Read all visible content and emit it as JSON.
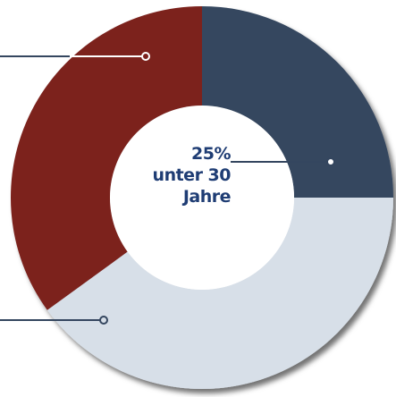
{
  "chart_data": {
    "type": "pie",
    "donut": true,
    "start_angle_deg": 0,
    "slices": [
      {
        "value": 25,
        "color": "#34465f"
      },
      {
        "value": 40,
        "color": "#d7dfe8"
      },
      {
        "value": 35,
        "color": "#7b211d"
      }
    ],
    "annotations": {
      "center_value": "25%",
      "center_line1": "unter 30",
      "center_line2": "Jahre",
      "clipped_top_left": "0"
    }
  },
  "colors": {
    "text_accent": "#1f3d74",
    "text_dark": "#1a1a1a",
    "leader": "#ffffff",
    "leader_dark": "#34465f"
  }
}
